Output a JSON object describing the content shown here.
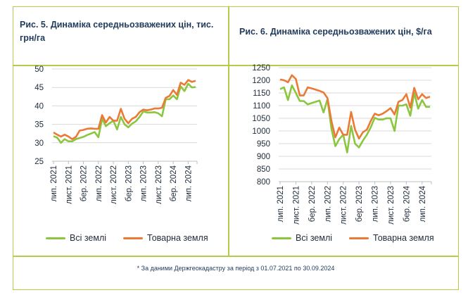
{
  "colors": {
    "border": "#b5cc4a",
    "all_land": "#8cc63f",
    "commercial_land": "#ec7a35",
    "grid": "#d9d9d9"
  },
  "footer": "* За даними Держгеокадастру за період з 01.07.2021 по 30.09.2024",
  "chart_data": [
    {
      "type": "line",
      "title": "Рис. 5. Динаміка середньозважених цін, тис. грн/га",
      "ylim": [
        25,
        50
      ],
      "yticks": [
        "25",
        "30",
        "35",
        "40",
        "45",
        "50"
      ],
      "grid": true,
      "legend_placement": "bottom",
      "x_tick_labels": [
        "лип. 2021",
        "лист. 2021",
        "бер. 2022",
        "лип. 2022",
        "лист. 2022",
        "бер. 2023",
        "лип. 2023",
        "лист. 2023",
        "бер. 2024",
        "лип. 2024"
      ],
      "x_period": "лип. 2021 – вер. 2024 (monthly)",
      "series": [
        {
          "name": "Всі землі",
          "color": "#8cc63f",
          "values": [
            31.8,
            31.4,
            30.0,
            31.0,
            30.4,
            30.4,
            31.0,
            31.3,
            31.6,
            32.1,
            32.5,
            32.9,
            31.5,
            36.5,
            34.5,
            35.3,
            36.0,
            33.6,
            37.0,
            35.0,
            34.2,
            35.2,
            35.8,
            37.0,
            38.5,
            38.2,
            38.2,
            38.3,
            38.0,
            37.2,
            41.8,
            41.8,
            42.8,
            41.8,
            45.3,
            44.0,
            46.0,
            45.0,
            45.1
          ]
        },
        {
          "name": "Товарна земля",
          "color": "#ec7a35",
          "values": [
            32.8,
            32.2,
            31.7,
            32.2,
            31.7,
            31.0,
            31.6,
            33.3,
            33.5,
            33.8,
            33.9,
            33.8,
            33.8,
            37.5,
            35.5,
            37.0,
            36.0,
            36.0,
            39.2,
            36.5,
            35.3,
            36.5,
            37.0,
            38.3,
            39.0,
            38.8,
            39.0,
            39.3,
            39.3,
            39.5,
            42.2,
            42.7,
            44.3,
            43.0,
            46.3,
            45.7,
            47.0,
            46.5,
            46.8
          ]
        }
      ]
    },
    {
      "type": "line",
      "title": "Рис. 6. Динаміка середньозважених цін, $/га",
      "ylim": [
        800,
        1250
      ],
      "yticks": [
        "800",
        "850",
        "900",
        "950",
        "1000",
        "1050",
        "1100",
        "1150",
        "1200",
        "1250"
      ],
      "grid": true,
      "legend_placement": "bottom",
      "x_tick_labels": [
        "лип. 2021",
        "лист. 2021",
        "бер. 2022",
        "лип. 2022",
        "лист. 2022",
        "бер. 2023",
        "лип. 2023",
        "лист. 2023",
        "бер. 2024",
        "лип. 2024"
      ],
      "x_period": "лип. 2021 – вер. 2024 (monthly)",
      "series": [
        {
          "name": "Всі землі",
          "color": "#8cc63f",
          "values": [
            1165,
            1172,
            1122,
            1180,
            1150,
            1118,
            1118,
            1105,
            1110,
            1115,
            1120,
            1073,
            1125,
            1010,
            940,
            968,
            985,
            915,
            1020,
            950,
            935,
            962,
            985,
            1015,
            1052,
            1045,
            1045,
            1050,
            1050,
            1000,
            1100,
            1100,
            1105,
            1060,
            1150,
            1088,
            1122,
            1095,
            1095
          ]
        },
        {
          "name": "Товарна земля",
          "color": "#ec7a35",
          "values": [
            1203,
            1200,
            1192,
            1220,
            1205,
            1140,
            1140,
            1172,
            1168,
            1163,
            1158,
            1152,
            1130,
            1040,
            975,
            1013,
            985,
            985,
            1075,
            1005,
            970,
            995,
            1005,
            1040,
            1068,
            1062,
            1068,
            1078,
            1090,
            1065,
            1115,
            1122,
            1145,
            1092,
            1170,
            1125,
            1145,
            1130,
            1135
          ]
        }
      ]
    }
  ]
}
